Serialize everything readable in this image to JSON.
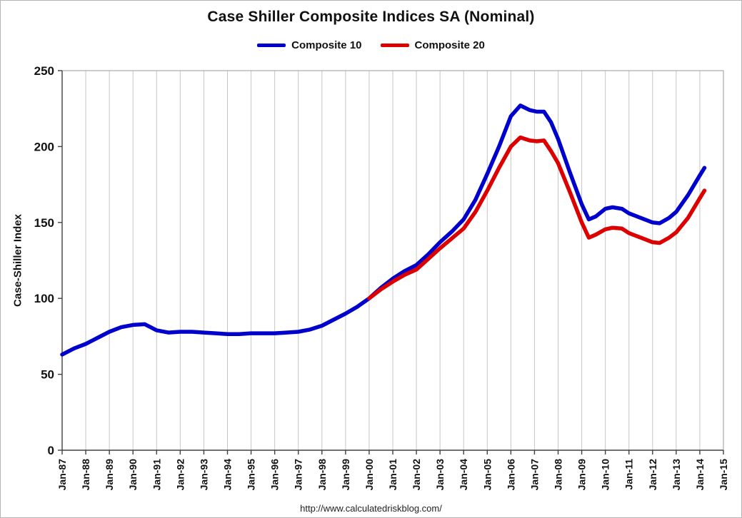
{
  "footer": {
    "url": "http://www.calculatedriskblog.com/"
  },
  "chart_data": {
    "type": "line",
    "title": "Case Shiller Composite Indices SA (Nominal)",
    "xlabel": "",
    "ylabel": "Case-Shiller Index",
    "ylim": [
      0,
      250
    ],
    "y_ticks": [
      0,
      50,
      100,
      150,
      200,
      250
    ],
    "x_range": [
      1987,
      2015
    ],
    "x_ticks": [
      "Jan-87",
      "Jan-88",
      "Jan-89",
      "Jan-90",
      "Jan-91",
      "Jan-92",
      "Jan-93",
      "Jan-94",
      "Jan-95",
      "Jan-96",
      "Jan-97",
      "Jan-98",
      "Jan-99",
      "Jan-00",
      "Jan-01",
      "Jan-02",
      "Jan-03",
      "Jan-04",
      "Jan-05",
      "Jan-06",
      "Jan-07",
      "Jan-08",
      "Jan-09",
      "Jan-10",
      "Jan-11",
      "Jan-12",
      "Jan-13",
      "Jan-14",
      "Jan-15"
    ],
    "grid": "vertical",
    "legend_position": "top",
    "grid_color": "#c6c6c6",
    "axis_color": "#404040",
    "border_color": "#999999",
    "series": [
      {
        "name": "Composite 10",
        "color": "#0000cc",
        "x": [
          1987.0,
          1987.5,
          1988.0,
          1988.5,
          1989.0,
          1989.5,
          1990.0,
          1990.5,
          1991.0,
          1991.5,
          1992.0,
          1992.5,
          1993.0,
          1993.5,
          1994.0,
          1994.5,
          1995.0,
          1995.5,
          1996.0,
          1996.5,
          1997.0,
          1997.5,
          1998.0,
          1998.5,
          1999.0,
          1999.5,
          2000.0,
          2000.5,
          2001.0,
          2001.5,
          2002.0,
          2002.5,
          2003.0,
          2003.5,
          2004.0,
          2004.5,
          2005.0,
          2005.5,
          2006.0,
          2006.4,
          2006.8,
          2007.1,
          2007.4,
          2007.7,
          2008.0,
          2008.5,
          2009.0,
          2009.3,
          2009.6,
          2010.0,
          2010.3,
          2010.7,
          2011.0,
          2011.5,
          2012.0,
          2012.3,
          2012.7,
          2013.0,
          2013.5,
          2014.0,
          2014.2
        ],
        "values": [
          63,
          67,
          70,
          74,
          78,
          81,
          82.5,
          83,
          79,
          77.5,
          78,
          78,
          77.5,
          77,
          76.5,
          76.5,
          77,
          77,
          77,
          77.5,
          78,
          79.5,
          82,
          86,
          90,
          94.5,
          100,
          107,
          113,
          118,
          122,
          129,
          137,
          144,
          152,
          165,
          182,
          200,
          220,
          227,
          224,
          223,
          223,
          216,
          205,
          183,
          162,
          152,
          154,
          159,
          160,
          159,
          156,
          153,
          150,
          149.5,
          153,
          157,
          168,
          181,
          186
        ]
      },
      {
        "name": "Composite 20",
        "color": "#dd0000",
        "x": [
          2000.0,
          2000.5,
          2001.0,
          2001.5,
          2002.0,
          2002.5,
          2003.0,
          2003.5,
          2004.0,
          2004.5,
          2005.0,
          2005.5,
          2006.0,
          2006.4,
          2006.8,
          2007.1,
          2007.4,
          2007.7,
          2008.0,
          2008.5,
          2009.0,
          2009.3,
          2009.6,
          2010.0,
          2010.3,
          2010.7,
          2011.0,
          2011.5,
          2012.0,
          2012.3,
          2012.7,
          2013.0,
          2013.5,
          2014.0,
          2014.2
        ],
        "values": [
          100,
          106,
          111,
          115.5,
          119,
          126,
          133,
          139.5,
          146,
          157,
          171,
          186,
          200,
          206,
          204,
          203.5,
          204,
          197,
          189,
          170,
          150,
          140,
          142,
          145.5,
          146.5,
          146,
          143,
          140,
          137,
          136.5,
          140,
          143.5,
          153,
          166,
          171
        ]
      }
    ]
  }
}
